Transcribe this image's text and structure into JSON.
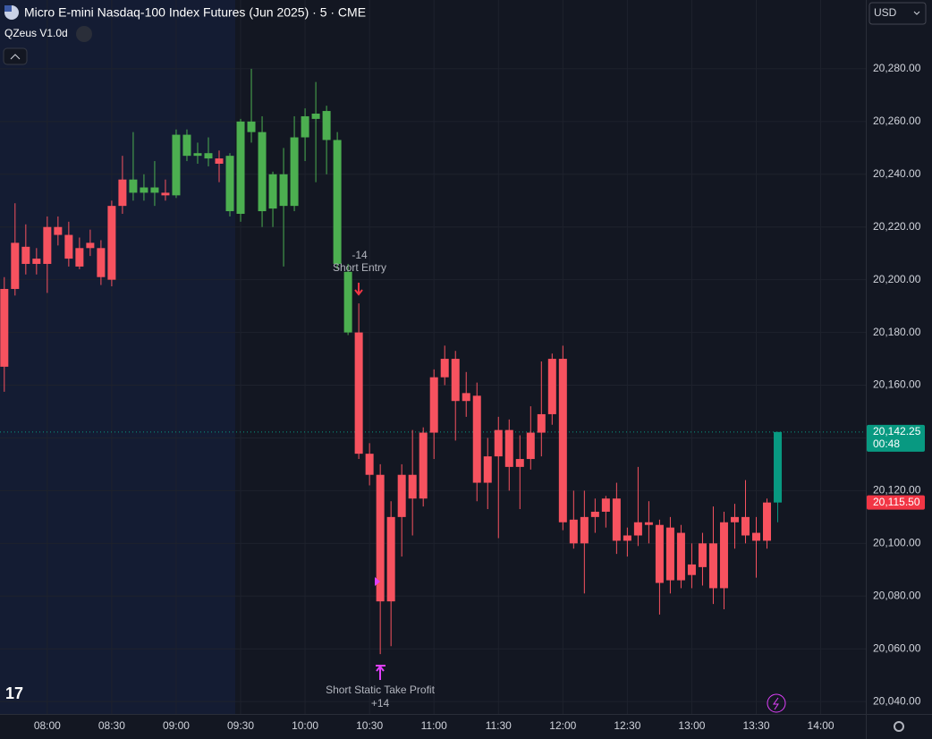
{
  "chart_data": {
    "type": "candlestick",
    "title": "Micro E-mini Nasdaq-100 Index Futures (Jun 2025) · 5 · CME",
    "indicator": "QZeus V1.0d",
    "currency": "USD",
    "x": [
      "07:40",
      "07:45",
      "07:50",
      "07:55",
      "08:00",
      "08:05",
      "08:10",
      "08:15",
      "08:20",
      "08:25",
      "08:30",
      "08:35",
      "08:40",
      "08:45",
      "08:50",
      "08:55",
      "09:00",
      "09:05",
      "09:10",
      "09:15",
      "09:20",
      "09:25",
      "09:30",
      "09:35",
      "09:40",
      "09:45",
      "09:50",
      "09:55",
      "10:00",
      "10:05",
      "10:10",
      "10:15",
      "10:20",
      "10:25",
      "10:30",
      "10:35",
      "10:40",
      "10:45",
      "10:50",
      "10:55",
      "11:00",
      "11:05",
      "11:10",
      "11:15",
      "11:20",
      "11:25",
      "11:30",
      "11:35",
      "11:40",
      "11:45",
      "11:50",
      "11:55",
      "12:00",
      "12:05",
      "12:10",
      "12:15",
      "12:20",
      "12:25",
      "12:30",
      "12:35",
      "12:40",
      "12:45",
      "12:50",
      "12:55",
      "13:00",
      "13:05",
      "13:10",
      "13:15",
      "13:20",
      "13:25",
      "13:30",
      "13:35",
      "13:40"
    ],
    "open": [
      20167,
      20196.5,
      20212.5,
      20206,
      20206,
      20220,
      20217,
      20212,
      20212,
      20212,
      20200,
      20228,
      20238,
      20233,
      20235,
      20233,
      20232,
      20255,
      20247,
      20248,
      20246,
      20247,
      20225,
      20260,
      20256,
      20227,
      20240,
      20228,
      20254,
      20261,
      20264,
      20253,
      20203,
      20180,
      20134,
      20126,
      20078,
      20110,
      20126,
      20117,
      20142,
      20163,
      20170,
      20154,
      20156,
      20123,
      20133,
      20143,
      20129,
      20132,
      20142,
      20149,
      20170,
      20109,
      20100,
      20110,
      20112,
      20117,
      20101,
      20103,
      20108,
      20107,
      20086,
      20086,
      20092,
      20091,
      20100,
      20083,
      20108,
      20110,
      20104,
      20101,
      20115.5
    ],
    "high": [
      20201,
      20229,
      20221,
      20212,
      20224,
      20224,
      20222,
      20216,
      20219,
      20215,
      20230,
      20247,
      20256,
      20240,
      20245,
      20238,
      20257,
      20257,
      20252,
      20254,
      20249,
      20248,
      20261,
      20280,
      20262,
      20241,
      20250,
      20262,
      20265,
      20275,
      20266,
      20256,
      20206,
      20191,
      20138,
      20130,
      20116,
      20130,
      20143,
      20144,
      20166,
      20175,
      20173,
      20165,
      20161,
      20140,
      20148,
      20147,
      20141,
      20152,
      20169,
      20172,
      20175,
      20120,
      20120,
      20117,
      20118,
      20123,
      20106,
      20129,
      20116,
      20109,
      20110,
      20107,
      20100,
      20104,
      20114,
      20112,
      20115,
      20124,
      20110,
      20117,
      20142.25
    ],
    "low": [
      20157.5,
      20194,
      20202,
      20202,
      20195,
      20213,
      20205,
      20204,
      20209,
      20198,
      20197.5,
      20225,
      20230,
      20230,
      20228,
      20230,
      20231,
      20245,
      20244,
      20243,
      20237,
      20224,
      20222,
      20252,
      20220,
      20220,
      20205,
      20226,
      20245,
      20237,
      20240,
      20204,
      20179,
      20132,
      20122,
      20058,
      20061,
      20095,
      20103,
      20114,
      20132,
      20160,
      20139,
      20148,
      20116,
      20113,
      20102,
      20120,
      20113,
      20128,
      20133,
      20145,
      20105,
      20098,
      20081,
      20104,
      20106,
      20096,
      20095,
      20099,
      20100,
      20073,
      20081,
      20083,
      20083,
      20084,
      20077,
      20075,
      20098,
      20100,
      20087,
      20098,
      20108
    ],
    "close": [
      20196.5,
      20214,
      20206,
      20208,
      20220,
      20217,
      20208,
      20205,
      20214,
      20201,
      20228,
      20238,
      20233,
      20235,
      20233,
      20232,
      20255,
      20247,
      20248,
      20246,
      20244,
      20226,
      20260,
      20256,
      20226,
      20240,
      20228,
      20254,
      20262,
      20263,
      20253,
      20206,
      20180,
      20134,
      20126,
      20078,
      20110,
      20126,
      20117,
      20142,
      20163,
      20170,
      20154,
      20157,
      20123,
      20133,
      20143,
      20129,
      20132,
      20142,
      20149,
      20170,
      20108,
      20100,
      20110,
      20112,
      20117,
      20101,
      20103,
      20108,
      20107,
      20085,
      20106,
      20104,
      20088,
      20100,
      20083,
      20108,
      20110,
      20103,
      20101,
      20115.5,
      20142.25
    ],
    "colors": [
      "#f7525f",
      "#f7525f",
      "#f7525f",
      "#f7525f",
      "#f7525f",
      "#f7525f",
      "#f7525f",
      "#f7525f",
      "#f7525f",
      "#f7525f",
      "#f7525f",
      "#f7525f",
      "#4caf50",
      "#4caf50",
      "#4caf50",
      "#f7525f",
      "#4caf50",
      "#4caf50",
      "#4caf50",
      "#4caf50",
      "#f7525f",
      "#4caf50",
      "#4caf50",
      "#4caf50",
      "#4caf50",
      "#4caf50",
      "#4caf50",
      "#4caf50",
      "#4caf50",
      "#4caf50",
      "#4caf50",
      "#4caf50",
      "#4caf50",
      "#f7525f",
      "#f7525f",
      "#f7525f",
      "#f7525f",
      "#f7525f",
      "#f7525f",
      "#f7525f",
      "#f7525f",
      "#f7525f",
      "#f7525f",
      "#f7525f",
      "#f7525f",
      "#f7525f",
      "#f7525f",
      "#f7525f",
      "#f7525f",
      "#f7525f",
      "#f7525f",
      "#f7525f",
      "#f7525f",
      "#f7525f",
      "#f7525f",
      "#f7525f",
      "#f7525f",
      "#f7525f",
      "#f7525f",
      "#f7525f",
      "#f7525f",
      "#f7525f",
      "#f7525f",
      "#f7525f",
      "#f7525f",
      "#f7525f",
      "#f7525f",
      "#f7525f",
      "#f7525f",
      "#f7525f",
      "#f7525f",
      "#f7525f",
      "#089981"
    ],
    "xlim": [
      "07:38",
      "14:21"
    ],
    "xticks": [
      "08:00",
      "08:30",
      "09:00",
      "09:30",
      "10:00",
      "10:30",
      "11:00",
      "11:30",
      "12:00",
      "12:30",
      "13:00",
      "13:30",
      "14:00"
    ],
    "ylim": [
      20035.3,
      20306.1
    ],
    "yticks": [
      {
        "value": 20040,
        "label": "20,040.00"
      },
      {
        "value": 20060,
        "label": "20,060.00"
      },
      {
        "value": 20080,
        "label": "20,080.00"
      },
      {
        "value": 20100,
        "label": "20,100.00"
      },
      {
        "value": 20120,
        "label": "20,120.00"
      },
      {
        "value": 20140,
        "label": "20,140.00"
      },
      {
        "value": 20160,
        "label": "20,160.00"
      },
      {
        "value": 20180,
        "label": "20,180.00"
      },
      {
        "value": 20200,
        "label": "20,200.00"
      },
      {
        "value": 20220,
        "label": "20,220.00"
      },
      {
        "value": 20240,
        "label": "20,240.00"
      },
      {
        "value": 20260,
        "label": "20,260.00"
      },
      {
        "value": 20280,
        "label": "20,280.00"
      }
    ],
    "last_price": {
      "value": 20142.25,
      "label": "20,142.25"
    },
    "countdown": "00:48",
    "prev_price": {
      "value": 20115.5,
      "label": "20,115.50"
    },
    "annotations": [
      "-14",
      "Short Entry",
      "Short Static Take Profit",
      "+14"
    ],
    "grid": true
  }
}
